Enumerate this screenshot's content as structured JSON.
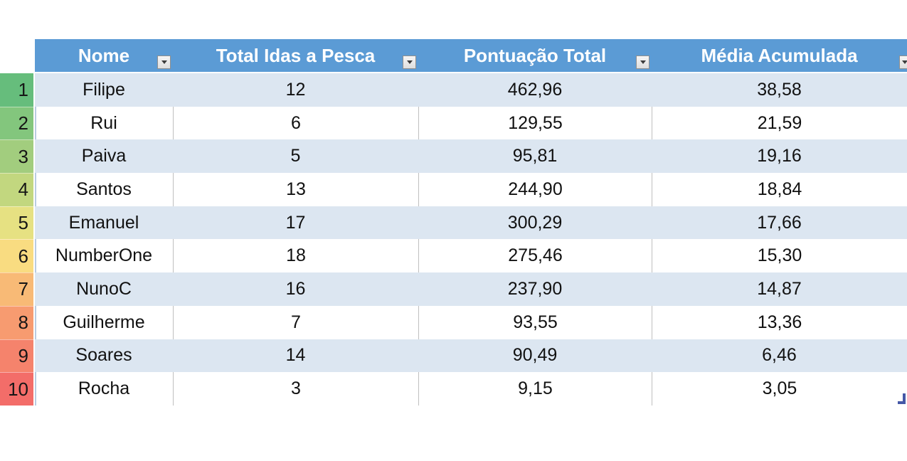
{
  "colors": {
    "header_bg": "#5B9BD5",
    "header_text": "#FFFFFF",
    "banded_row_bg": "#DCE6F1",
    "white_row_bg": "#FFFFFF",
    "grid_border": "#BFBFBF",
    "resize_handle": "#4558A7"
  },
  "icons": {
    "filter_dropdown": "filter-dropdown-arrow",
    "sort_filter": "sort-down-arrow-with-bar",
    "resize_handle": "corner-angle"
  },
  "ranks": [
    {
      "value": "1",
      "color": "#66BD7C"
    },
    {
      "value": "2",
      "color": "#83C67D"
    },
    {
      "value": "3",
      "color": "#A2CD7E"
    },
    {
      "value": "4",
      "color": "#C2D77F"
    },
    {
      "value": "5",
      "color": "#E6E182"
    },
    {
      "value": "6",
      "color": "#F9DC81"
    },
    {
      "value": "7",
      "color": "#F8BA76"
    },
    {
      "value": "8",
      "color": "#F79B70"
    },
    {
      "value": "9",
      "color": "#F5836C"
    },
    {
      "value": "10",
      "color": "#F36D69"
    }
  ],
  "table": {
    "columns": [
      {
        "label": "Nome"
      },
      {
        "label": "Total Idas a Pesca"
      },
      {
        "label": "Pontuação Total"
      },
      {
        "label": "Média Acumulada"
      }
    ],
    "rows": [
      {
        "cells": [
          "Filipe",
          "12",
          "462,96",
          "38,58"
        ]
      },
      {
        "cells": [
          "Rui",
          "6",
          "129,55",
          "21,59"
        ]
      },
      {
        "cells": [
          "Paiva",
          "5",
          "95,81",
          "19,16"
        ]
      },
      {
        "cells": [
          "Santos",
          "13",
          "244,90",
          "18,84"
        ]
      },
      {
        "cells": [
          "Emanuel",
          "17",
          "300,29",
          "17,66"
        ]
      },
      {
        "cells": [
          "NumberOne",
          "18",
          "275,46",
          "15,30"
        ]
      },
      {
        "cells": [
          "NunoC",
          "16",
          "237,90",
          "14,87"
        ]
      },
      {
        "cells": [
          "Guilherme",
          "7",
          "93,55",
          "13,36"
        ]
      },
      {
        "cells": [
          "Soares",
          "14",
          "90,49",
          "6,46"
        ]
      },
      {
        "cells": [
          "Rocha",
          "3",
          "9,15",
          "3,05"
        ]
      }
    ]
  }
}
